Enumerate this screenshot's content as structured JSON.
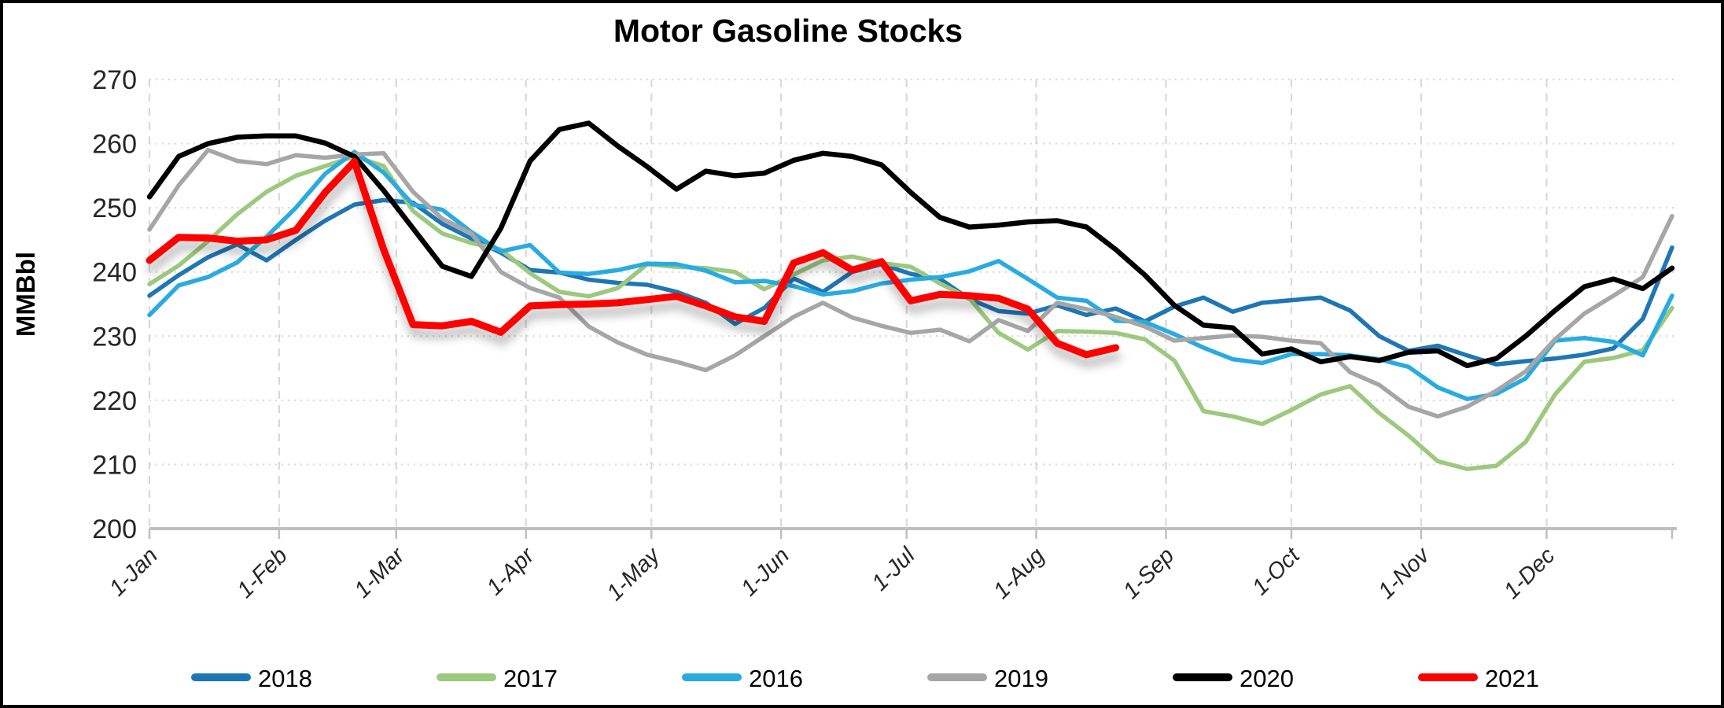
{
  "title": "Motor Gasoline Stocks",
  "colors": {
    "grid": "#D9D9D9",
    "axis_line": "#BFBFBF",
    "tick_text": "#262626",
    "title_text": "#000000",
    "background": "#FFFFFF",
    "border": "#000000"
  },
  "y_axis": {
    "label": "MMBbl",
    "min": 200,
    "max": 270,
    "tick_step": 10,
    "tick_labels": [
      "200",
      "210",
      "220",
      "230",
      "240",
      "250",
      "260",
      "270"
    ]
  },
  "x_axis": {
    "tick_labels": [
      "1-Jan",
      "1-Feb",
      "1-Mar",
      "1-Apr",
      "1-May",
      "1-Jun",
      "1-Jul",
      "1-Aug",
      "1-Sep",
      "1-Oct",
      "1-Nov",
      "1-Dec"
    ],
    "month_start_days": [
      0,
      31,
      59,
      90,
      120,
      151,
      181,
      212,
      243,
      273,
      304,
      334
    ],
    "days_total": 364
  },
  "legend": {
    "items": [
      {
        "label": "2018",
        "color": "#1F76B5"
      },
      {
        "label": "2017",
        "color": "#9CC97E"
      },
      {
        "label": "2016",
        "color": "#29ABE2"
      },
      {
        "label": "2019",
        "color": "#A6A6A6"
      },
      {
        "label": "2020",
        "color": "#000000"
      },
      {
        "label": "2021",
        "color": "#FF0000"
      }
    ]
  },
  "chart_data": {
    "type": "line",
    "title": "Motor Gasoline Stocks",
    "ylabel": "MMBbl",
    "ylim": [
      200,
      270
    ],
    "grid": "dotted horizontal at 210-270, dashed vertical at month starts, solid axis at 200",
    "legend_position": "bottom",
    "x_unit": "weekly values; x day-of-year = index * 7 (Jan 1 = 0)",
    "series": [
      {
        "name": "2018",
        "color": "#1F76B5",
        "stroke_width": 5.5,
        "values": [
          236.3,
          239.5,
          242.3,
          244.3,
          241.8,
          245.0,
          248.0,
          250.5,
          251.2,
          250.8,
          247.5,
          245.2,
          243.0,
          240.3,
          239.9,
          238.8,
          238.3,
          238.0,
          236.9,
          235.2,
          231.9,
          234.4,
          239.0,
          236.9,
          240.0,
          241.2,
          239.7,
          238.9,
          235.8,
          233.9,
          233.5,
          234.8,
          233.3,
          234.3,
          232.3,
          234.6,
          236.0,
          233.8,
          235.2,
          235.6,
          236.0,
          234.0,
          230.0,
          227.7,
          228.5,
          227.0,
          225.6,
          226.1,
          226.5,
          227.1,
          228.1,
          232.7,
          243.8
        ]
      },
      {
        "name": "2017",
        "color": "#9CC97E",
        "stroke_width": 5.5,
        "values": [
          238.1,
          241.0,
          244.8,
          249.0,
          252.5,
          255.0,
          256.5,
          258.0,
          256.5,
          249.5,
          246.0,
          244.5,
          243.5,
          239.8,
          236.9,
          236.2,
          237.5,
          241.2,
          240.8,
          240.6,
          240.0,
          237.3,
          239.6,
          241.8,
          242.4,
          241.4,
          240.8,
          238.2,
          235.9,
          230.5,
          227.9,
          230.8,
          230.7,
          230.5,
          229.5,
          226.2,
          218.3,
          217.5,
          216.3,
          218.5,
          220.9,
          222.2,
          218.0,
          214.5,
          210.5,
          209.3,
          209.8,
          213.5,
          220.9,
          226.0,
          226.6,
          227.8,
          234.4
        ]
      },
      {
        "name": "2016",
        "color": "#29ABE2",
        "stroke_width": 5.5,
        "values": [
          233.3,
          237.9,
          239.2,
          241.5,
          245.5,
          250.0,
          255.3,
          258.7,
          255.5,
          250.5,
          249.7,
          246.2,
          243.2,
          244.2,
          239.9,
          239.7,
          240.3,
          241.3,
          241.2,
          240.2,
          238.4,
          238.6,
          237.8,
          236.5,
          237.0,
          238.2,
          238.8,
          239.2,
          240.1,
          241.7,
          238.9,
          236.0,
          235.5,
          232.4,
          232.2,
          230.3,
          228.2,
          226.4,
          225.8,
          227.2,
          227.2,
          227.0,
          226.4,
          225.2,
          222.0,
          220.2,
          221.0,
          223.4,
          229.3,
          229.7,
          229.1,
          227.0,
          236.3
        ]
      },
      {
        "name": "2019",
        "color": "#A6A6A6",
        "stroke_width": 5.5,
        "values": [
          246.6,
          253.5,
          259.0,
          257.3,
          256.8,
          258.2,
          257.8,
          258.3,
          258.5,
          252.5,
          248.3,
          246.0,
          240.0,
          237.5,
          236.0,
          231.5,
          229.0,
          227.1,
          226.0,
          224.7,
          227.0,
          230.0,
          233.0,
          235.2,
          232.9,
          231.6,
          230.5,
          231.0,
          229.2,
          232.5,
          230.8,
          235.2,
          234.2,
          233.0,
          231.5,
          229.3,
          229.7,
          230.1,
          229.9,
          229.3,
          228.9,
          224.4,
          222.4,
          219.0,
          217.5,
          219.0,
          221.5,
          224.5,
          229.5,
          233.5,
          236.3,
          239.2,
          248.7
        ]
      },
      {
        "name": "2020",
        "color": "#000000",
        "stroke_width": 6.5,
        "values": [
          251.7,
          258.0,
          260.0,
          261.0,
          261.2,
          261.2,
          260.1,
          258.0,
          252.7,
          246.8,
          240.9,
          239.3,
          246.8,
          257.3,
          262.2,
          263.2,
          259.6,
          256.4,
          252.9,
          255.7,
          255.0,
          255.4,
          257.4,
          258.5,
          258.0,
          256.7,
          252.4,
          248.5,
          247.0,
          247.3,
          247.8,
          248.0,
          247.0,
          243.5,
          239.5,
          234.8,
          231.7,
          231.3,
          227.2,
          228.0,
          226.0,
          226.8,
          226.2,
          227.5,
          227.7,
          225.4,
          226.5,
          230.0,
          234.0,
          237.7,
          238.9,
          237.4,
          240.6
        ]
      },
      {
        "name": "2021",
        "color": "#FF0000",
        "stroke_width": 9,
        "shadow": true,
        "values": [
          241.8,
          245.4,
          245.3,
          244.8,
          245.0,
          246.5,
          252.4,
          257.2,
          243.5,
          231.8,
          231.6,
          232.3,
          230.6,
          234.7,
          234.9,
          235.0,
          235.2,
          235.7,
          236.2,
          234.7,
          233.0,
          232.3,
          241.4,
          243.0,
          240.3,
          241.6,
          235.5,
          236.5,
          236.3,
          235.9,
          234.2,
          228.9,
          227.1,
          228.2
        ]
      }
    ]
  }
}
